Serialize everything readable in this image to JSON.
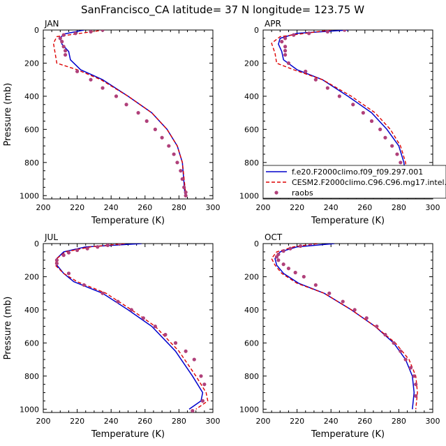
{
  "figure_title": "SanFrancisco_CA  latitude= 37 N longitude= 123.75 W",
  "legend": {
    "entries": [
      {
        "label": "f.e20.F2000climo.f09_f09.297.001",
        "style": "solid",
        "color": "#0000cc"
      },
      {
        "label": "CESM2.F2000climo.C96.C96.mg17.intel.4",
        "style": "dashed",
        "color": "#dd0000"
      },
      {
        "label": "raobs",
        "style": "dots",
        "color": "#b0407a"
      }
    ]
  },
  "chart_data": [
    {
      "type": "line",
      "title": "JAN",
      "xlabel": "Temperature (K)",
      "ylabel": "Pressure (mb)",
      "xlim": [
        200,
        300
      ],
      "ylim": [
        1020,
        0
      ],
      "x_ticks": [
        200,
        220,
        240,
        260,
        280,
        300
      ],
      "y_ticks": [
        0,
        200,
        400,
        600,
        800,
        1000
      ],
      "series": [
        {
          "name": "f.e20.F2000climo.f09_f09.297.001",
          "color": "#0000cc",
          "x": [
            224,
            212,
            210,
            211,
            215,
            216,
            222,
            235,
            250,
            264,
            273,
            279,
            282,
            283.5
          ],
          "y": [
            0,
            25,
            50,
            85,
            130,
            180,
            240,
            300,
            400,
            500,
            600,
            700,
            800,
            990
          ]
        },
        {
          "name": "CESM2.F2000climo.C96.C96.mg17.intel.4",
          "color": "#dd0000",
          "x": [
            236,
            222,
            208,
            206,
            207,
            208,
            220,
            234,
            250,
            264,
            273,
            279,
            282,
            284
          ],
          "y": [
            0,
            20,
            40,
            80,
            140,
            200,
            240,
            300,
            400,
            500,
            600,
            700,
            800,
            990
          ]
        },
        {
          "name": "raobs",
          "color": "#b0407a",
          "x": [
            235,
            228,
            219,
            212,
            210,
            211,
            212,
            213,
            213,
            220,
            228,
            235,
            243,
            249,
            256,
            261,
            266,
            270,
            274,
            277,
            279,
            281,
            282,
            283,
            284,
            284
          ],
          "y": [
            0,
            10,
            20,
            30,
            50,
            70,
            100,
            125,
            150,
            250,
            300,
            350,
            400,
            450,
            500,
            550,
            600,
            650,
            700,
            750,
            800,
            850,
            900,
            950,
            980,
            1000
          ]
        }
      ]
    },
    {
      "type": "line",
      "title": "APR",
      "xlabel": "Temperature (K)",
      "ylabel": "Pressure (mb)",
      "xlim": [
        200,
        300
      ],
      "ylim": [
        1020,
        0
      ],
      "x_ticks": [
        200,
        220,
        240,
        260,
        280,
        300
      ],
      "y_ticks": [
        0,
        200,
        400,
        600,
        800,
        1000
      ],
      "series": [
        {
          "name": "f.e20.F2000climo.f09_f09.297.001",
          "color": "#0000cc",
          "x": [
            250,
            220,
            210,
            209,
            211,
            212,
            220,
            235,
            250,
            264,
            273,
            280,
            283,
            285
          ],
          "y": [
            0,
            20,
            50,
            85,
            130,
            180,
            240,
            300,
            400,
            500,
            600,
            700,
            800,
            990
          ]
        },
        {
          "name": "CESM2.F2000climo.C96.C96.mg17.intel.4",
          "color": "#dd0000",
          "x": [
            240,
            225,
            210,
            205,
            207,
            208,
            218,
            235,
            252,
            266,
            275,
            281,
            284,
            285
          ],
          "y": [
            0,
            20,
            40,
            80,
            140,
            200,
            240,
            300,
            400,
            500,
            600,
            700,
            800,
            990
          ]
        },
        {
          "name": "raobs",
          "color": "#b0407a",
          "x": [
            248,
            238,
            227,
            218,
            213,
            211,
            213,
            213,
            213,
            215,
            225,
            231,
            238,
            245,
            253,
            259,
            264,
            269,
            272,
            276,
            279,
            281,
            283,
            284,
            285,
            285
          ],
          "y": [
            0,
            10,
            20,
            30,
            50,
            70,
            100,
            125,
            150,
            200,
            250,
            300,
            350,
            400,
            450,
            500,
            550,
            600,
            650,
            700,
            750,
            800,
            850,
            900,
            950,
            1000
          ]
        }
      ]
    },
    {
      "type": "line",
      "title": "JUL",
      "xlabel": "Temperature (K)",
      "ylabel": "Pressure (mb)",
      "xlim": [
        200,
        300
      ],
      "ylim": [
        1020,
        0
      ],
      "x_ticks": [
        200,
        220,
        240,
        260,
        280,
        300
      ],
      "y_ticks": [
        0,
        200,
        400,
        600,
        800,
        1000
      ],
      "series": [
        {
          "name": "f.e20.F2000climo.f09_f09.297.001",
          "color": "#0000cc",
          "x": [
            258,
            225,
            212,
            208,
            208,
            212,
            218,
            235,
            250,
            264,
            278,
            288,
            294,
            293,
            286
          ],
          "y": [
            0,
            20,
            50,
            90,
            130,
            180,
            230,
            300,
            400,
            500,
            650,
            800,
            900,
            950,
            1000
          ]
        },
        {
          "name": "CESM2.F2000climo.C96.C96.mg17.intel.4",
          "color": "#dd0000",
          "x": [
            248,
            228,
            213,
            208,
            207,
            212,
            220,
            237,
            252,
            266,
            280,
            290,
            296,
            297,
            290
          ],
          "y": [
            0,
            20,
            50,
            90,
            130,
            180,
            230,
            300,
            400,
            500,
            650,
            800,
            900,
            950,
            1000
          ]
        },
        {
          "name": "raobs",
          "color": "#b0407a",
          "x": [
            245,
            238,
            232,
            226,
            220,
            215,
            212,
            208,
            208,
            215,
            224,
            235,
            244,
            252,
            259,
            266,
            272,
            278,
            284,
            289,
            293,
            295,
            294,
            288
          ],
          "y": [
            0,
            10,
            20,
            30,
            40,
            55,
            70,
            100,
            120,
            180,
            250,
            300,
            350,
            400,
            450,
            500,
            550,
            600,
            650,
            700,
            800,
            850,
            950,
            1010
          ]
        }
      ]
    },
    {
      "type": "line",
      "title": "OCT",
      "xlabel": "Temperature (K)",
      "ylabel": "Pressure (mb)",
      "xlim": [
        200,
        300
      ],
      "ylim": [
        1020,
        0
      ],
      "x_ticks": [
        200,
        220,
        240,
        260,
        280,
        300
      ],
      "y_ticks": [
        0,
        200,
        400,
        600,
        800,
        1000
      ],
      "series": [
        {
          "name": "f.e20.F2000climo.f09_f09.297.001",
          "color": "#0000cc",
          "x": [
            242,
            220,
            210,
            207,
            208,
            212,
            221,
            236,
            252,
            266,
            277,
            284,
            288,
            289,
            288
          ],
          "y": [
            0,
            20,
            50,
            90,
            130,
            180,
            240,
            300,
            400,
            500,
            600,
            700,
            800,
            900,
            1000
          ]
        },
        {
          "name": "CESM2.F2000climo.C96.C96.mg17.intel.4",
          "color": "#dd0000",
          "x": [
            232,
            218,
            208,
            205,
            207,
            211,
            220,
            236,
            252,
            266,
            278,
            286,
            290,
            291,
            290
          ],
          "y": [
            0,
            20,
            50,
            90,
            130,
            180,
            240,
            300,
            400,
            500,
            600,
            700,
            800,
            900,
            1000
          ]
        },
        {
          "name": "raobs",
          "color": "#b0407a",
          "x": [
            228,
            222,
            216,
            212,
            209,
            208,
            209,
            212,
            215,
            219,
            224,
            231,
            239,
            247,
            254,
            261,
            267,
            272,
            277,
            281,
            284,
            287,
            289,
            290,
            290
          ],
          "y": [
            0,
            15,
            30,
            45,
            65,
            80,
            100,
            125,
            150,
            175,
            200,
            250,
            300,
            350,
            400,
            450,
            500,
            550,
            600,
            650,
            700,
            750,
            800,
            850,
            920
          ]
        }
      ]
    }
  ]
}
